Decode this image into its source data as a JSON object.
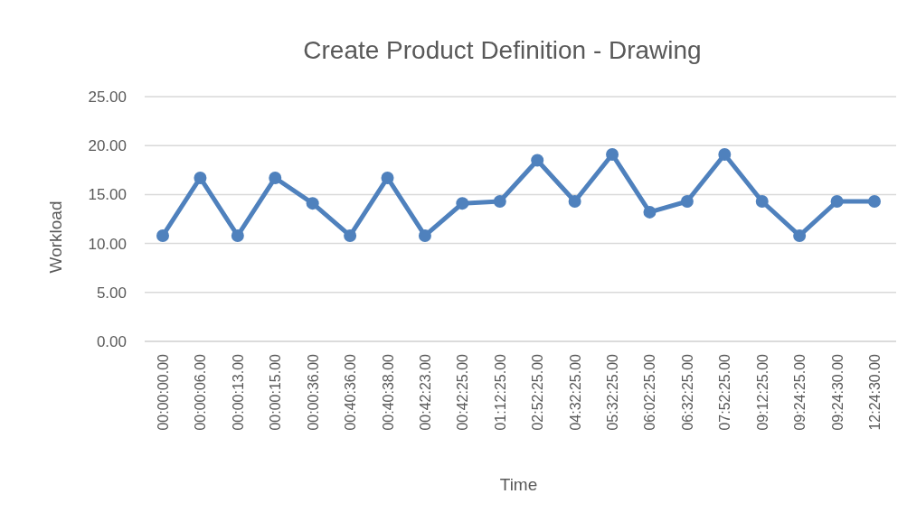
{
  "chart_data": {
    "type": "line",
    "title": "Create Product Definition - Drawing",
    "xlabel": "Time",
    "ylabel": "Workload",
    "categories": [
      "00:00:00.00",
      "00:00:06.00",
      "00:00:13.00",
      "00:00:15.00",
      "00:00:36.00",
      "00:40:36.00",
      "00:40:38.00",
      "00:42:23.00",
      "00:42:25.00",
      "01:12:25.00",
      "02:52:25.00",
      "04:32:25.00",
      "05:32:25.00",
      "06:02:25.00",
      "06:32:25.00",
      "07:52:25.00",
      "09:12:25.00",
      "09:24:25.00",
      "09:24:30.00",
      "12:24:30.00"
    ],
    "series": [
      {
        "color": "#4f81bd",
        "values": [
          10.8,
          16.7,
          10.8,
          16.7,
          14.1,
          10.8,
          16.7,
          10.8,
          14.1,
          14.3,
          18.5,
          14.3,
          19.1,
          13.2,
          14.3,
          19.1,
          14.3,
          10.8,
          14.3,
          14.3
        ]
      }
    ],
    "ylim": [
      0,
      25
    ],
    "yticks": [
      {
        "value": 0,
        "label": "0.00"
      },
      {
        "value": 5,
        "label": "5.00"
      },
      {
        "value": 10,
        "label": "10.00"
      },
      {
        "value": 15,
        "label": "15.00"
      },
      {
        "value": 20,
        "label": "20.00"
      },
      {
        "value": 25,
        "label": "25.00"
      }
    ],
    "grid": "y",
    "marker": "circle",
    "line_style": "solid"
  }
}
